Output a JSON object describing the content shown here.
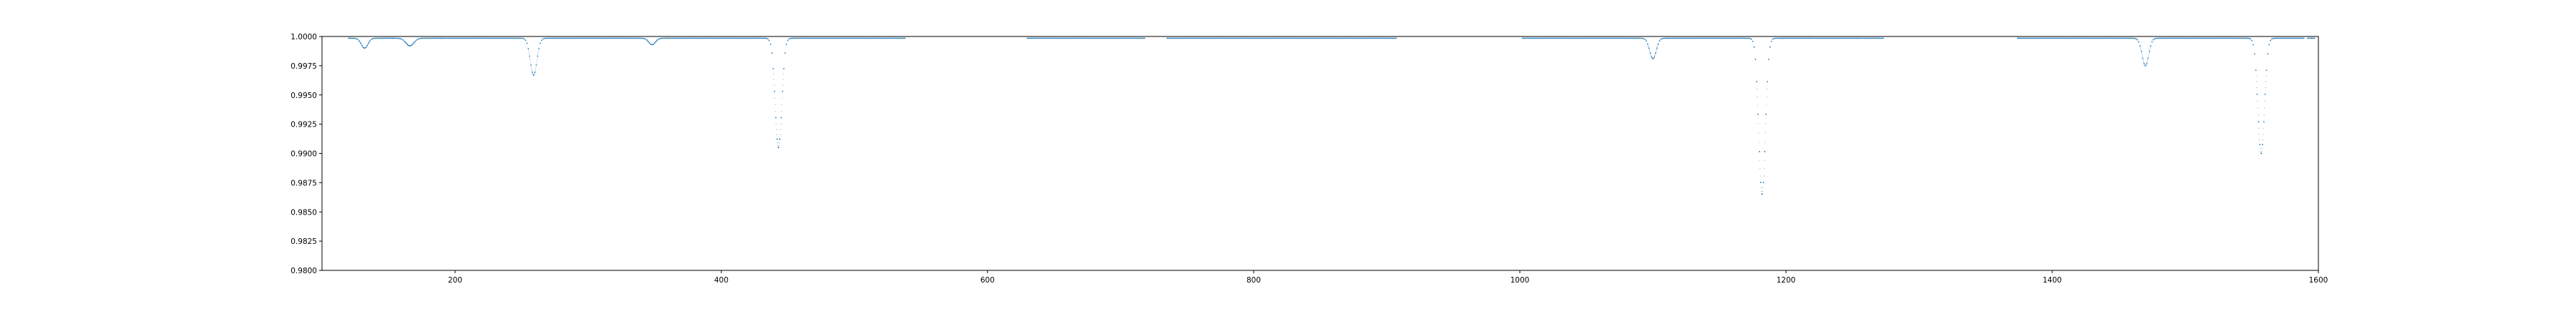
{
  "colors": {
    "series": "#1f77b4",
    "axes": "#000000",
    "background": "#ffffff"
  },
  "chart_data": {
    "type": "scatter",
    "title": "",
    "xlabel": "",
    "ylabel": "",
    "grid": false,
    "legend": "none",
    "xlim": [
      100,
      1600
    ],
    "ylim": [
      0.98,
      1.0
    ],
    "xticks": [
      200,
      400,
      600,
      800,
      1000,
      1200,
      1400,
      1600
    ],
    "yticks": [
      0.98,
      0.9825,
      0.985,
      0.9875,
      0.99,
      0.9925,
      0.995,
      0.9975,
      1.0
    ],
    "xtick_labels": [
      "200",
      "400",
      "600",
      "800",
      "1000",
      "1200",
      "1400",
      "1600"
    ],
    "ytick_labels": [
      "0.9800",
      "0.9825",
      "0.9850",
      "0.9875",
      "0.9900",
      "0.9925",
      "0.9950",
      "0.9975",
      "1.0000"
    ],
    "series": [
      {
        "baseline": 0.99985,
        "x_ranges": [
          [
            120,
            538
          ],
          [
            630,
            718
          ],
          [
            735,
            907
          ],
          [
            1002,
            1273
          ],
          [
            1374,
            1589
          ],
          [
            1592,
            1597
          ]
        ],
        "dips": [
          {
            "x": 132,
            "min": 0.999,
            "width": 2.5
          },
          {
            "x": 166,
            "min": 0.9992,
            "width": 3
          },
          {
            "x": 259,
            "min": 0.9967,
            "width": 2.5
          },
          {
            "x": 348,
            "min": 0.9993,
            "width": 2.5
          },
          {
            "x": 443,
            "min": 0.9905,
            "width": 2.5
          },
          {
            "x": 1100,
            "min": 0.9981,
            "width": 2.5
          },
          {
            "x": 1182,
            "min": 0.9865,
            "width": 2.5
          },
          {
            "x": 1470,
            "min": 0.9975,
            "width": 2.5
          },
          {
            "x": 1557,
            "min": 0.99,
            "width": 2.5
          }
        ]
      }
    ]
  }
}
